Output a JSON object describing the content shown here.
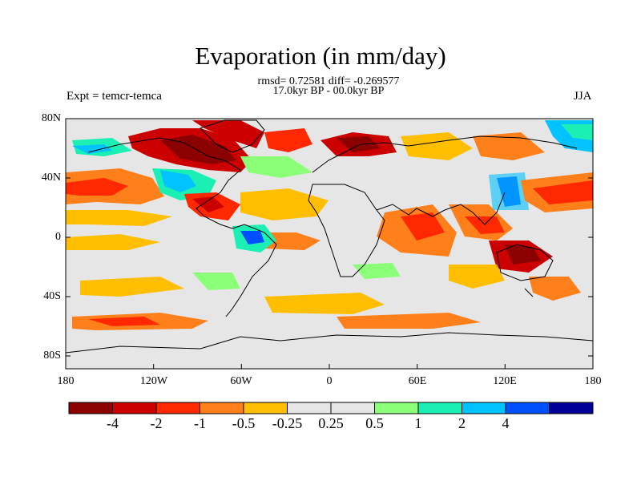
{
  "title": "Evaporation (in mm/day)",
  "stats_line": "rmsd= 0.72581 diff= -0.269577",
  "period_line": "17.0kyr BP - 00.0kyr BP",
  "expt_label": "Expt = temcr-temca",
  "season_label": "JJA",
  "lat_ticks": [
    "80N",
    "40N",
    "0",
    "40S",
    "80S"
  ],
  "lon_ticks": [
    "180",
    "120W",
    "60W",
    "0",
    "60E",
    "120E",
    "180"
  ],
  "colorbar": {
    "colors": [
      "#8b0000",
      "#cc0000",
      "#ff2800",
      "#ff7f1a",
      "#ffbf00",
      "#e6e6e6",
      "#e6e6e6",
      "#8cff78",
      "#1af0b4",
      "#00c3ff",
      "#0050ff",
      "#000096"
    ],
    "labels": [
      "-4",
      "-2",
      "-1",
      "-0.5",
      "-0.25",
      "0.25",
      "0.5",
      "1",
      "2",
      "4"
    ]
  },
  "legend_colors": {
    "land_bg": "#e6e6e6",
    "strong_neg": "#8b0000",
    "neg": "#cc0000",
    "mod_neg": "#ff2800",
    "weak_neg": "#ff7f1a",
    "slight_neg": "#ffbf00",
    "slight_pos": "#8cff78",
    "pos": "#1af0b4",
    "mod_pos": "#00c3ff",
    "strong_pos": "#0050ff"
  }
}
